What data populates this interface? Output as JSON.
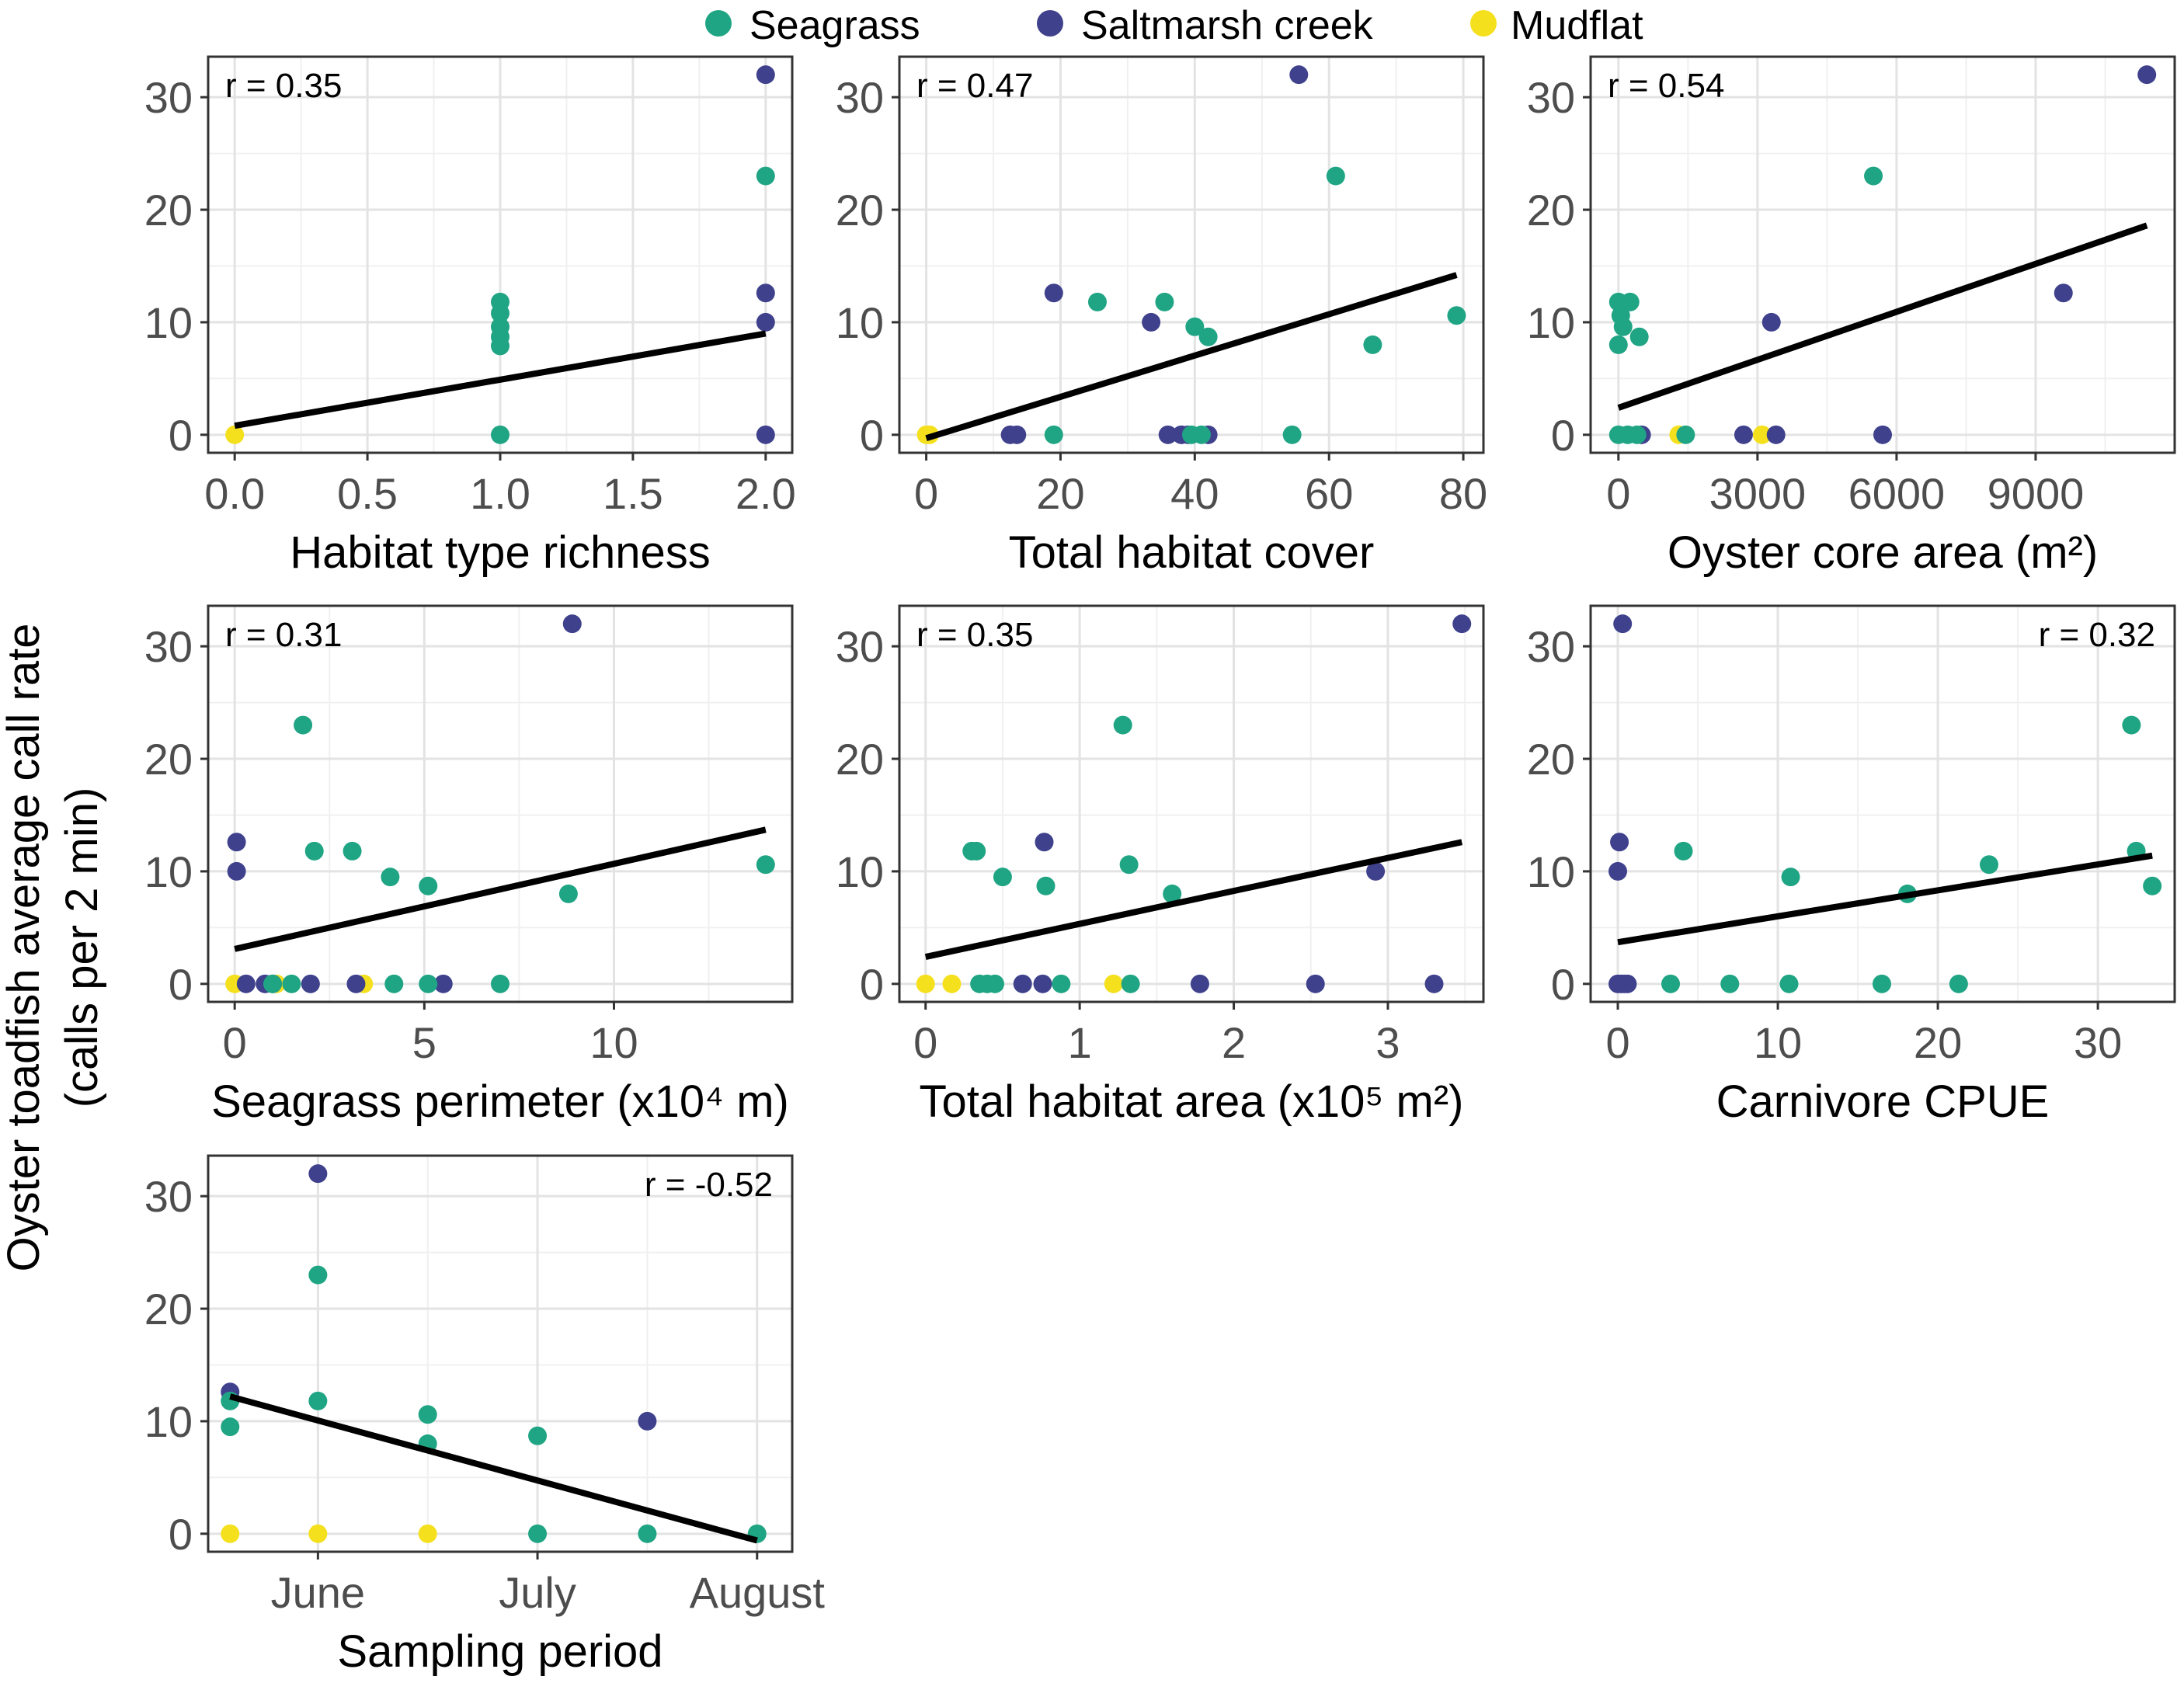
{
  "legend": {
    "position": "top",
    "entries": [
      {
        "label": "Seagrass",
        "color": "#1fa584"
      },
      {
        "label": "Saltmarsh creek",
        "color": "#3f418c"
      },
      {
        "label": "Mudflat",
        "color": "#f5e01e"
      }
    ]
  },
  "y_axis_title": [
    "Oyster toadfish average call rate",
    "(calls per 2 min)"
  ],
  "chart_data": [
    {
      "type": "scatter",
      "xlabel": "Habitat type richness",
      "annotation": "r = 0.35",
      "annotation_pos": "top-left",
      "xlim": [
        -0.1,
        2.1
      ],
      "xticks": [
        0,
        0.5,
        1,
        1.5,
        2
      ],
      "xtick_labels": [
        "0.0",
        "0.5",
        "1.0",
        "1.5",
        "2.0"
      ],
      "ylim": [
        -1.6,
        33.6
      ],
      "yticks": [
        0,
        10,
        20,
        30
      ],
      "ytick_labels": [
        "0",
        "10",
        "20",
        "30"
      ],
      "grid": true,
      "series": [
        {
          "name": "Seagrass",
          "points": [
            [
              1,
              11.8
            ],
            [
              1,
              10.8
            ],
            [
              1,
              9.6
            ],
            [
              1,
              8.7
            ],
            [
              1,
              7.9
            ],
            [
              1,
              0
            ],
            [
              2,
              23
            ]
          ]
        },
        {
          "name": "Saltmarsh creek",
          "points": [
            [
              2,
              32
            ],
            [
              2,
              12.6
            ],
            [
              2,
              10
            ],
            [
              2,
              0
            ]
          ]
        },
        {
          "name": "Mudflat",
          "points": [
            [
              0,
              0
            ]
          ]
        }
      ],
      "fit": [
        [
          0,
          0.8
        ],
        [
          2,
          9
        ]
      ]
    },
    {
      "type": "scatter",
      "xlabel": "Total habitat cover",
      "annotation": "r = 0.47",
      "annotation_pos": "top-left",
      "xlim": [
        -4,
        83
      ],
      "xticks": [
        0,
        20,
        40,
        60,
        80
      ],
      "xtick_labels": [
        "0",
        "20",
        "40",
        "60",
        "80"
      ],
      "ylim": [
        -1.6,
        33.6
      ],
      "yticks": [
        0,
        10,
        20,
        30
      ],
      "ytick_labels": [
        "0",
        "10",
        "20",
        "30"
      ],
      "grid": true,
      "series": [
        {
          "name": "Seagrass",
          "points": [
            [
              25.5,
              11.8
            ],
            [
              35.5,
              11.8
            ],
            [
              40,
              9.6
            ],
            [
              42,
              8.7
            ],
            [
              66.5,
              8
            ],
            [
              79,
              10.6
            ],
            [
              61,
              23
            ],
            [
              19,
              0
            ],
            [
              39.5,
              0
            ],
            [
              41,
              0
            ],
            [
              54.5,
              0
            ]
          ]
        },
        {
          "name": "Saltmarsh creek",
          "points": [
            [
              55.5,
              32
            ],
            [
              19,
              12.6
            ],
            [
              33.5,
              10
            ],
            [
              12.5,
              0
            ],
            [
              13.5,
              0
            ],
            [
              36,
              0
            ],
            [
              38,
              0
            ],
            [
              39,
              0
            ],
            [
              42,
              0
            ]
          ]
        },
        {
          "name": "Mudflat",
          "points": [
            [
              0,
              0
            ],
            [
              0.5,
              0
            ]
          ]
        }
      ],
      "fit": [
        [
          0,
          -0.3
        ],
        [
          79,
          14.2
        ]
      ]
    },
    {
      "type": "scatter",
      "xlabel": "Oyster core area (m²)",
      "annotation": "r = 0.54",
      "annotation_pos": "top-left",
      "xlim": [
        -600,
        12000
      ],
      "xticks": [
        0,
        3000,
        6000,
        9000
      ],
      "xtick_labels": [
        "0",
        "3000",
        "6000",
        "9000"
      ],
      "ylim": [
        -1.6,
        33.6
      ],
      "yticks": [
        0,
        10,
        20,
        30
      ],
      "ytick_labels": [
        "0",
        "10",
        "20",
        "30"
      ],
      "grid": true,
      "series": [
        {
          "name": "Seagrass",
          "points": [
            [
              0,
              11.8
            ],
            [
              250,
              11.8
            ],
            [
              50,
              10.6
            ],
            [
              100,
              9.6
            ],
            [
              450,
              8.7
            ],
            [
              0,
              8
            ],
            [
              5500,
              23
            ],
            [
              0,
              0
            ],
            [
              200,
              0
            ],
            [
              400,
              0
            ],
            [
              1450,
              0
            ]
          ]
        },
        {
          "name": "Saltmarsh creek",
          "points": [
            [
              11400,
              32
            ],
            [
              9600,
              12.6
            ],
            [
              3300,
              10
            ],
            [
              500,
              0
            ],
            [
              2700,
              0
            ],
            [
              3400,
              0
            ],
            [
              5700,
              0
            ]
          ]
        },
        {
          "name": "Mudflat",
          "points": [
            [
              1300,
              0
            ],
            [
              3100,
              0
            ]
          ]
        }
      ],
      "fit": [
        [
          0,
          2.4
        ],
        [
          11400,
          18.6
        ]
      ]
    },
    {
      "type": "scatter",
      "xlabel": "Seagrass perimeter (x10⁴ m)",
      "annotation": "r = 0.31",
      "annotation_pos": "top-left",
      "xlim": [
        -0.7,
        14.7
      ],
      "xticks": [
        0,
        5,
        10
      ],
      "xtick_labels": [
        "0",
        "5",
        "10"
      ],
      "ylim": [
        -1.6,
        33.6
      ],
      "yticks": [
        0,
        10,
        20,
        30
      ],
      "ytick_labels": [
        "0",
        "10",
        "20",
        "30"
      ],
      "grid": true,
      "series": [
        {
          "name": "Seagrass",
          "points": [
            [
              1.8,
              23
            ],
            [
              2.1,
              11.8
            ],
            [
              3.1,
              11.8
            ],
            [
              4.1,
              9.5
            ],
            [
              5.1,
              8.7
            ],
            [
              8.8,
              8
            ],
            [
              14,
              10.6
            ],
            [
              1.0,
              0
            ],
            [
              1.5,
              0
            ],
            [
              4.2,
              0
            ],
            [
              5.1,
              0
            ],
            [
              7.0,
              0
            ]
          ]
        },
        {
          "name": "Saltmarsh creek",
          "points": [
            [
              8.9,
              32
            ],
            [
              0.05,
              12.6
            ],
            [
              0.05,
              10
            ],
            [
              0.3,
              0
            ],
            [
              0.8,
              0
            ],
            [
              1.0,
              0
            ],
            [
              2.0,
              0
            ],
            [
              3.2,
              0
            ],
            [
              5.5,
              0
            ]
          ]
        },
        {
          "name": "Mudflat",
          "points": [
            [
              0,
              0
            ],
            [
              1.1,
              0
            ],
            [
              3.4,
              0
            ]
          ]
        }
      ],
      "fit": [
        [
          0,
          3.1
        ],
        [
          14,
          13.7
        ]
      ]
    },
    {
      "type": "scatter",
      "xlabel": "Total habitat area (x10⁵ m²)",
      "annotation": "r = 0.35",
      "annotation_pos": "top-left",
      "xlim": [
        -0.17,
        3.62
      ],
      "xticks": [
        0,
        1,
        2,
        3
      ],
      "xtick_labels": [
        "0",
        "1",
        "2",
        "3"
      ],
      "ylim": [
        -1.6,
        33.6
      ],
      "yticks": [
        0,
        10,
        20,
        30
      ],
      "ytick_labels": [
        "0",
        "10",
        "20",
        "30"
      ],
      "grid": true,
      "series": [
        {
          "name": "Seagrass",
          "points": [
            [
              0.3,
              11.8
            ],
            [
              0.33,
              11.8
            ],
            [
              0.5,
              9.5
            ],
            [
              0.78,
              8.7
            ],
            [
              1.32,
              10.6
            ],
            [
              1.6,
              8
            ],
            [
              1.28,
              23
            ],
            [
              0.35,
              0
            ],
            [
              0.4,
              0
            ],
            [
              0.45,
              0
            ],
            [
              0.88,
              0
            ],
            [
              1.33,
              0
            ]
          ]
        },
        {
          "name": "Saltmarsh creek",
          "points": [
            [
              3.48,
              32
            ],
            [
              0.77,
              12.6
            ],
            [
              2.92,
              10
            ],
            [
              0.63,
              0
            ],
            [
              0.76,
              0
            ],
            [
              1.78,
              0
            ],
            [
              2.53,
              0
            ],
            [
              3.3,
              0
            ]
          ]
        },
        {
          "name": "Mudflat",
          "points": [
            [
              0,
              0
            ],
            [
              0.17,
              0
            ],
            [
              1.22,
              0
            ]
          ]
        }
      ],
      "fit": [
        [
          0,
          2.4
        ],
        [
          3.48,
          12.6
        ]
      ]
    },
    {
      "type": "scatter",
      "xlabel": "Carnivore CPUE",
      "annotation": "r = 0.32",
      "annotation_pos": "top-right",
      "xlim": [
        -1.7,
        34.8
      ],
      "xticks": [
        0,
        10,
        20,
        30
      ],
      "xtick_labels": [
        "0",
        "10",
        "20",
        "30"
      ],
      "ylim": [
        -1.6,
        33.6
      ],
      "yticks": [
        0,
        10,
        20,
        30
      ],
      "ytick_labels": [
        "0",
        "10",
        "20",
        "30"
      ],
      "grid": true,
      "series": [
        {
          "name": "Seagrass",
          "points": [
            [
              4.1,
              11.8
            ],
            [
              10.8,
              9.5
            ],
            [
              18.1,
              8
            ],
            [
              23.2,
              10.6
            ],
            [
              32.1,
              23
            ],
            [
              32.4,
              11.8
            ],
            [
              33.4,
              8.7
            ],
            [
              3.3,
              0
            ],
            [
              7.0,
              0
            ],
            [
              10.7,
              0
            ],
            [
              16.5,
              0
            ],
            [
              21.3,
              0
            ]
          ]
        },
        {
          "name": "Saltmarsh creek",
          "points": [
            [
              0.3,
              32
            ],
            [
              0.1,
              12.6
            ],
            [
              0,
              10
            ],
            [
              0,
              0
            ],
            [
              0.2,
              0
            ],
            [
              0.4,
              0
            ],
            [
              0.6,
              0
            ]
          ]
        },
        {
          "name": "Mudflat",
          "points": []
        }
      ],
      "fit": [
        [
          0,
          3.7
        ],
        [
          33.4,
          11.4
        ]
      ]
    },
    {
      "type": "scatter",
      "xlabel": "Sampling period",
      "annotation": "r = -0.52",
      "annotation_pos": "top-right",
      "xlim": [
        0,
        26.6
      ],
      "xticks": [
        5,
        15,
        25
      ],
      "xtick_labels": [
        "June",
        "July",
        "August"
      ],
      "ylim": [
        -1.6,
        33.6
      ],
      "yticks": [
        0,
        10,
        20,
        30
      ],
      "ytick_labels": [
        "0",
        "10",
        "20",
        "30"
      ],
      "grid": true,
      "series": [
        {
          "name": "Seagrass",
          "points": [
            [
              1,
              11.8
            ],
            [
              1,
              9.5
            ],
            [
              5,
              23
            ],
            [
              5,
              11.8
            ],
            [
              10,
              10.6
            ],
            [
              10,
              8
            ],
            [
              15,
              8.7
            ],
            [
              15,
              0
            ],
            [
              20,
              0
            ],
            [
              25,
              0
            ]
          ]
        },
        {
          "name": "Saltmarsh creek",
          "points": [
            [
              1,
              12.6
            ],
            [
              5,
              32
            ],
            [
              20,
              10
            ]
          ]
        },
        {
          "name": "Mudflat",
          "points": [
            [
              1,
              0
            ],
            [
              5,
              0
            ],
            [
              10,
              0
            ]
          ]
        }
      ],
      "fit": [
        [
          1,
          12.2
        ],
        [
          25,
          -0.6
        ]
      ]
    }
  ]
}
